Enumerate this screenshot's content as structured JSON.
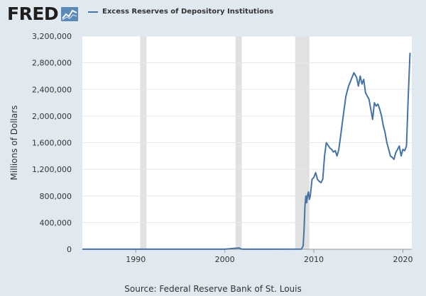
{
  "header": {
    "logo_text": "FRED",
    "logo_icon": "line-chart-icon"
  },
  "footer": {
    "source": "Source: Federal Reserve Bank of St. Louis"
  },
  "colors": {
    "background": "#e1e9f0",
    "plot_background": "#ffffff",
    "series": "#4572a7",
    "recession": "#e1e1e1",
    "grid": "#e6e6e6"
  },
  "chart_data": {
    "type": "line",
    "title": "",
    "xlabel": "",
    "ylabel": "Millions of Dollars",
    "xlim": [
      1984.0,
      2021.0
    ],
    "ylim": [
      0,
      3200000
    ],
    "x_ticks": [
      1990,
      2000,
      2010,
      2020
    ],
    "x_tick_labels": [
      "1990",
      "2000",
      "2010",
      "2020"
    ],
    "y_ticks": [
      0,
      400000,
      800000,
      1200000,
      1600000,
      2000000,
      2400000,
      2800000,
      3200000
    ],
    "y_tick_labels": [
      "0",
      "400,000",
      "800,000",
      "1,200,000",
      "1,600,000",
      "2,000,000",
      "2,400,000",
      "2,800,000",
      "3,200,000"
    ],
    "grid": true,
    "legend_position": "top-left",
    "recessions": [
      [
        1990.5,
        1991.2
      ],
      [
        2001.2,
        2001.9
      ],
      [
        2007.9,
        2009.5
      ]
    ],
    "series": [
      {
        "name": "Excess Reserves of Depository Institutions",
        "x": [
          1984.0,
          1990.0,
          2000.0,
          2001.6,
          2001.8,
          2002.0,
          2008.6,
          2008.8,
          2008.9,
          2009.0,
          2009.1,
          2009.2,
          2009.3,
          2009.4,
          2009.5,
          2009.6,
          2009.8,
          2010.0,
          2010.2,
          2010.4,
          2010.6,
          2010.8,
          2011.0,
          2011.2,
          2011.4,
          2011.6,
          2011.8,
          2012.0,
          2012.2,
          2012.4,
          2012.6,
          2012.8,
          2013.0,
          2013.3,
          2013.6,
          2013.9,
          2014.2,
          2014.5,
          2014.8,
          2015.0,
          2015.2,
          2015.4,
          2015.6,
          2015.8,
          2016.0,
          2016.2,
          2016.4,
          2016.6,
          2016.8,
          2017.0,
          2017.2,
          2017.4,
          2017.6,
          2017.8,
          2018.0,
          2018.2,
          2018.4,
          2018.6,
          2018.8,
          2019.0,
          2019.2,
          2019.4,
          2019.6,
          2019.8,
          2020.0,
          2020.2,
          2020.4,
          2020.6,
          2020.8
        ],
        "values": [
          1000,
          1500,
          1500,
          20000,
          5000,
          1500,
          2000,
          50000,
          300000,
          650000,
          800000,
          700000,
          820000,
          860000,
          750000,
          800000,
          1050000,
          1080000,
          1150000,
          1050000,
          1020000,
          1000000,
          1050000,
          1400000,
          1600000,
          1560000,
          1520000,
          1500000,
          1460000,
          1480000,
          1400000,
          1500000,
          1700000,
          2000000,
          2300000,
          2450000,
          2550000,
          2650000,
          2580000,
          2450000,
          2600000,
          2480000,
          2550000,
          2350000,
          2300000,
          2250000,
          2100000,
          1950000,
          2200000,
          2150000,
          2180000,
          2100000,
          2000000,
          1850000,
          1750000,
          1600000,
          1500000,
          1400000,
          1380000,
          1350000,
          1450000,
          1500000,
          1550000,
          1400000,
          1500000,
          1480000,
          1550000,
          2300000,
          2950000
        ]
      }
    ]
  }
}
